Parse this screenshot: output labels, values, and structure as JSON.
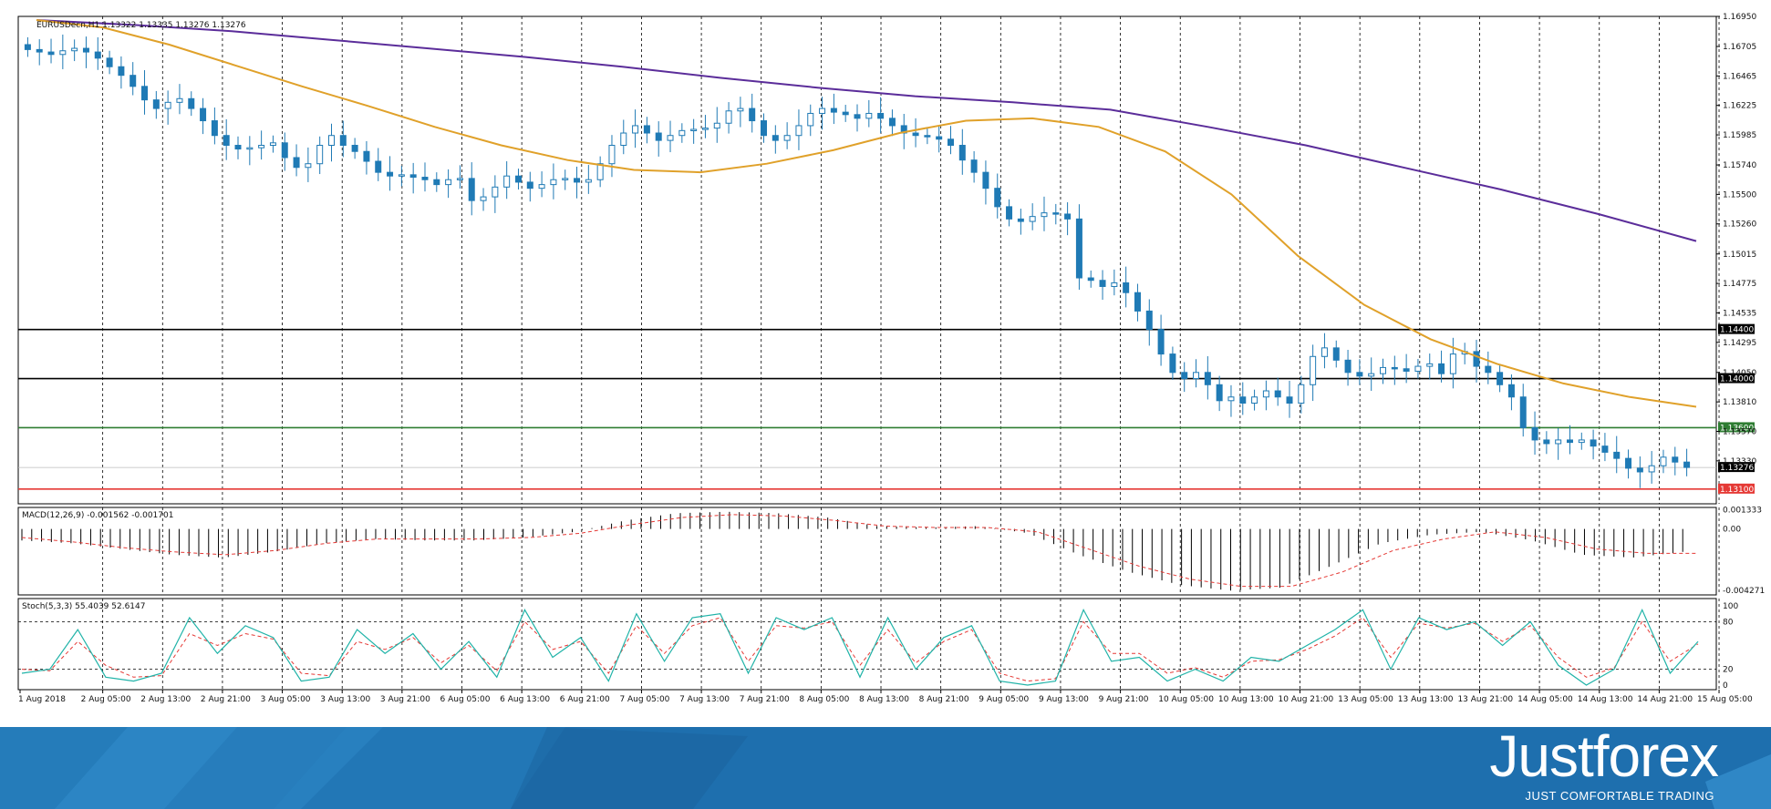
{
  "header": {
    "symbol_line": "EURUSDecn,H1  1.13322 1.13335 1.13276 1.13276"
  },
  "indicators": {
    "macd_label": "MACD(12,26,9) -0.001562 -0.001701",
    "stoch_label": "Stoch(5,3,3) 55.4039 52.6147"
  },
  "colors": {
    "candle": "#1f7ab5",
    "ma_slow": "#5b2d9a",
    "ma_fast": "#e0a12a",
    "support_black": "#000000",
    "support_green": "#2e7d32",
    "support_red": "#e53935",
    "stoch_main": "#20b3a8",
    "stoch_signal": "#e53935",
    "brand_bg": "#1e6fae"
  },
  "brand": {
    "name": "Justforex",
    "tagline": "JUST COMFORTABLE TRADING"
  },
  "chart_data": [
    {
      "type": "candlestick",
      "title": "EURUSDecn,H1  1.13322 1.13335 1.13276 1.13276",
      "ylim": [
        1.1298,
        1.1695
      ],
      "y_ticks": [
        "1.16950",
        "1.16705",
        "1.16465",
        "1.16225",
        "1.15985",
        "1.15740",
        "1.15500",
        "1.15260",
        "1.15015",
        "1.14775",
        "1.14535",
        "1.14295",
        "1.14050",
        "1.13810",
        "1.13570",
        "1.13330"
      ],
      "x_ticks": [
        "1 Aug 2018",
        "2 Aug 05:00",
        "2 Aug 13:00",
        "2 Aug 21:00",
        "3 Aug 05:00",
        "3 Aug 13:00",
        "3 Aug 21:00",
        "6 Aug 05:00",
        "6 Aug 13:00",
        "6 Aug 21:00",
        "7 Aug 05:00",
        "7 Aug 13:00",
        "7 Aug 21:00",
        "8 Aug 05:00",
        "8 Aug 13:00",
        "8 Aug 21:00",
        "9 Aug 05:00",
        "9 Aug 13:00",
        "9 Aug 21:00",
        "10 Aug 05:00",
        "10 Aug 13:00",
        "10 Aug 21:00",
        "13 Aug 05:00",
        "13 Aug 13:00",
        "13 Aug 21:00",
        "14 Aug 05:00",
        "14 Aug 13:00",
        "14 Aug 21:00",
        "15 Aug 05:00"
      ],
      "close_path": [
        1.1668,
        1.1666,
        1.1664,
        1.1667,
        1.1669,
        1.1666,
        1.1661,
        1.1654,
        1.1647,
        1.1638,
        1.1627,
        1.162,
        1.1625,
        1.1628,
        1.162,
        1.161,
        1.1598,
        1.159,
        1.1587,
        1.1588,
        1.159,
        1.1592,
        1.158,
        1.1572,
        1.1575,
        1.159,
        1.1598,
        1.159,
        1.1585,
        1.1577,
        1.1568,
        1.1565,
        1.1566,
        1.1564,
        1.1562,
        1.1558,
        1.1562,
        1.1563,
        1.1545,
        1.1548,
        1.1556,
        1.1565,
        1.156,
        1.1555,
        1.1558,
        1.1562,
        1.1563,
        1.156,
        1.1562,
        1.1575,
        1.159,
        1.16,
        1.1606,
        1.16,
        1.1594,
        1.1598,
        1.1602,
        1.1603,
        1.1604,
        1.1608,
        1.1618,
        1.162,
        1.161,
        1.1598,
        1.1594,
        1.1598,
        1.1606,
        1.1616,
        1.162,
        1.1617,
        1.1615,
        1.1612,
        1.1616,
        1.1612,
        1.1606,
        1.16,
        1.1598,
        1.1597,
        1.1595,
        1.159,
        1.1578,
        1.1568,
        1.1555,
        1.154,
        1.153,
        1.1528,
        1.1532,
        1.1535,
        1.1534,
        1.153,
        1.1482,
        1.148,
        1.1475,
        1.1478,
        1.147,
        1.1455,
        1.144,
        1.142,
        1.1405,
        1.14,
        1.1405,
        1.1395,
        1.1382,
        1.1385,
        1.138,
        1.1385,
        1.139,
        1.1385,
        1.138,
        1.1395,
        1.1418,
        1.1425,
        1.1415,
        1.1405,
        1.1402,
        1.1404,
        1.1409,
        1.1408,
        1.1406,
        1.141,
        1.1412,
        1.1404,
        1.142,
        1.1422,
        1.141,
        1.1405,
        1.1395,
        1.1385,
        1.136,
        1.135,
        1.1347,
        1.135,
        1.1348,
        1.135,
        1.1345,
        1.134,
        1.1335,
        1.1327,
        1.1324,
        1.1329,
        1.1336,
        1.1332,
        1.13276
      ],
      "series": [
        {
          "name": "ma_fast",
          "values": [
            1.1692,
            1.1686,
            1.1672,
            1.1655,
            1.1638,
            1.1622,
            1.1605,
            1.159,
            1.1578,
            1.157,
            1.1568,
            1.1575,
            1.1586,
            1.16,
            1.161,
            1.1612,
            1.1605,
            1.1585,
            1.155,
            1.15,
            1.146,
            1.1432,
            1.1412,
            1.1396,
            1.1385,
            1.1377
          ]
        },
        {
          "name": "ma_slow",
          "values": [
            1.1692,
            1.1688,
            1.1683,
            1.1676,
            1.1669,
            1.1662,
            1.1654,
            1.1645,
            1.1637,
            1.163,
            1.1625,
            1.1619,
            1.1605,
            1.159,
            1.1572,
            1.1554,
            1.1534,
            1.1512
          ]
        }
      ],
      "levels": [
        {
          "label": "1.14400",
          "value": 1.144,
          "color": "#000000"
        },
        {
          "label": "1.14000",
          "value": 1.14,
          "color": "#000000"
        },
        {
          "label": "1.13600",
          "value": 1.136,
          "color": "#2e7d32"
        },
        {
          "label": "1.13100",
          "value": 1.131,
          "color": "#e53935"
        }
      ],
      "current_price_label": "1.13276",
      "grid": true
    },
    {
      "type": "bar",
      "title": "MACD(12,26,9) -0.001562 -0.001701",
      "y_ticks": [
        "0.001333",
        "0.00",
        "-0.004271"
      ],
      "ylim": [
        -0.0046,
        0.0015
      ],
      "histogram_path": [
        -0.0008,
        -0.001,
        -0.0014,
        -0.0018,
        -0.002,
        -0.0016,
        -0.001,
        -0.0007,
        -0.0008,
        -0.0008,
        -0.0006,
        -0.0002,
        0.0006,
        0.0011,
        0.0012,
        0.0011,
        0.0008,
        0.0002,
        0.0001,
        0.0002,
        -0.0003,
        -0.0018,
        -0.003,
        -0.0039,
        -0.0043,
        -0.0041,
        -0.0026,
        -0.001,
        -0.0004,
        -0.0002,
        -0.0008,
        -0.0018,
        -0.002,
        -0.0016
      ],
      "signal_path": [
        -0.0006,
        -0.0009,
        -0.0013,
        -0.0016,
        -0.0018,
        -0.0015,
        -0.001,
        -0.0007,
        -0.0007,
        -0.0007,
        -0.0006,
        -0.0003,
        0.0003,
        0.0008,
        0.001,
        0.0009,
        0.0006,
        0.0002,
        0.0001,
        0.0001,
        -0.0002,
        -0.0014,
        -0.0026,
        -0.0035,
        -0.004,
        -0.004,
        -0.003,
        -0.0015,
        -0.0007,
        -0.0002,
        -0.0006,
        -0.0014,
        -0.0017,
        -0.0017
      ]
    },
    {
      "type": "line",
      "title": "Stoch(5,3,3) 55.4039 52.6147",
      "y_ticks": [
        "100",
        "80",
        "20",
        "0"
      ],
      "ylim": [
        0,
        100
      ],
      "levels": [
        80,
        20
      ],
      "series": [
        {
          "name": "main",
          "values": [
            15,
            20,
            70,
            10,
            5,
            15,
            85,
            40,
            75,
            60,
            5,
            10,
            70,
            40,
            65,
            20,
            55,
            10,
            95,
            35,
            60,
            5,
            90,
            30,
            85,
            90,
            15,
            85,
            70,
            85,
            10,
            85,
            20,
            60,
            75,
            5,
            0,
            5,
            95,
            30,
            35,
            5,
            20,
            5,
            35,
            30,
            50,
            70,
            95,
            20,
            85,
            70,
            80,
            50,
            80,
            25,
            0,
            20,
            95,
            15,
            55
          ]
        },
        {
          "name": "signal",
          "values": [
            20,
            18,
            55,
            25,
            10,
            12,
            65,
            50,
            65,
            58,
            15,
            12,
            55,
            45,
            60,
            28,
            50,
            18,
            80,
            45,
            55,
            15,
            75,
            40,
            75,
            85,
            30,
            75,
            72,
            80,
            25,
            70,
            28,
            55,
            70,
            15,
            5,
            8,
            80,
            40,
            40,
            15,
            22,
            10,
            30,
            32,
            45,
            62,
            85,
            35,
            78,
            72,
            78,
            55,
            75,
            35,
            10,
            22,
            80,
            30,
            52
          ]
        }
      ]
    }
  ]
}
